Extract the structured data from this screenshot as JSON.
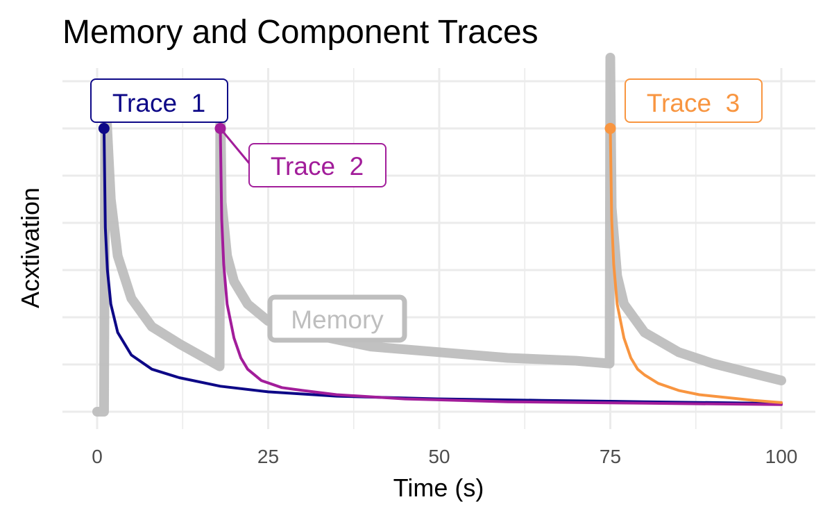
{
  "chart_data": {
    "type": "line",
    "title": "Memory and Component Traces",
    "xlabel": "Time (s)",
    "ylabel": "Acxtivation",
    "xlim": [
      0,
      100
    ],
    "x_ticks": [
      "0",
      "25",
      "50",
      "75",
      "100"
    ],
    "y_ticks_labeled": false,
    "grid": true,
    "legend": "none",
    "series": [
      {
        "name": "Memory",
        "color": "#bebebe",
        "x": [
          0,
          1,
          1.2,
          2,
          3,
          5,
          8,
          12,
          17.9,
          18,
          18.2,
          19,
          20,
          22,
          25,
          30,
          40,
          50,
          60,
          70,
          74.9,
          75,
          75.2,
          76,
          77,
          80,
          85,
          90,
          95,
          100
        ],
        "y": [
          0.0,
          0.0,
          1.13,
          0.75,
          0.55,
          0.4,
          0.3,
          0.24,
          0.16,
          1.12,
          0.74,
          0.55,
          0.46,
          0.38,
          0.32,
          0.28,
          0.23,
          0.21,
          0.19,
          0.18,
          0.17,
          1.25,
          0.72,
          0.48,
          0.38,
          0.28,
          0.21,
          0.17,
          0.14,
          0.11
        ]
      },
      {
        "name": "Trace  1",
        "color": "#0d0887",
        "x": [
          1,
          1.2,
          1.5,
          2,
          3,
          5,
          8,
          12,
          18,
          25,
          35,
          50,
          65,
          80,
          100
        ],
        "y": [
          1.0,
          0.65,
          0.5,
          0.38,
          0.28,
          0.2,
          0.15,
          0.12,
          0.09,
          0.07,
          0.055,
          0.045,
          0.04,
          0.035,
          0.029
        ]
      },
      {
        "name": "Trace  2",
        "color": "#a21d9a",
        "x": [
          18,
          18.2,
          18.5,
          19,
          20,
          21,
          22,
          24,
          27,
          30,
          35,
          45,
          60,
          80,
          100
        ],
        "y": [
          1.0,
          0.68,
          0.52,
          0.38,
          0.26,
          0.19,
          0.15,
          0.11,
          0.085,
          0.075,
          0.06,
          0.045,
          0.035,
          0.03,
          0.025
        ]
      },
      {
        "name": "Trace  3",
        "color": "#f89540",
        "x": [
          75,
          75.2,
          75.5,
          76,
          77,
          78,
          79,
          80,
          82,
          85,
          88,
          92,
          96,
          100
        ],
        "y": [
          1.0,
          0.68,
          0.52,
          0.38,
          0.26,
          0.19,
          0.15,
          0.13,
          0.1,
          0.075,
          0.06,
          0.05,
          0.04,
          0.032
        ]
      }
    ],
    "annotations": [
      {
        "text": "Trace  1",
        "series": "Trace  1",
        "x": 1,
        "y": 1.0,
        "color": "#0d0887"
      },
      {
        "text": "Trace  2",
        "series": "Trace  2",
        "x": 18,
        "y": 1.0,
        "color": "#a21d9a"
      },
      {
        "text": "Trace  3",
        "series": "Trace  3",
        "x": 75,
        "y": 1.0,
        "color": "#f89540"
      },
      {
        "text": "Memory",
        "series": "Memory",
        "color": "#bebebe"
      }
    ]
  }
}
